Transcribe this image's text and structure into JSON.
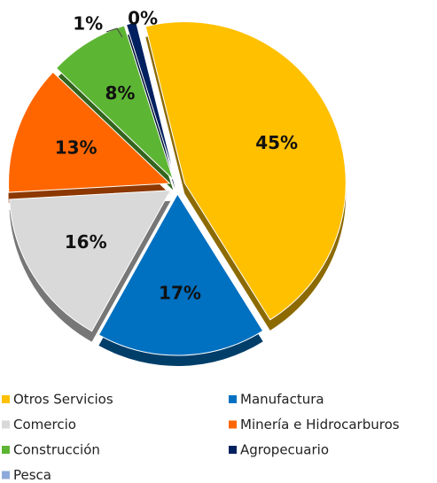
{
  "chart_data": {
    "type": "pie",
    "categories": [
      "Otros Servicios",
      "Manufactura",
      "Comercio",
      "Minería e Hidrocarburos",
      "Construcción",
      "Agropecuario",
      "Pesca"
    ],
    "values": [
      45,
      17,
      16,
      13,
      8,
      1,
      0
    ],
    "value_labels": [
      "45%",
      "17%",
      "16%",
      "13%",
      "8%",
      "1%",
      "0%"
    ],
    "colors": [
      "#FFC000",
      "#0070C0",
      "#D9D9D9",
      "#FF6600",
      "#5DB534",
      "#002060",
      "#8EA9DB"
    ]
  }
}
